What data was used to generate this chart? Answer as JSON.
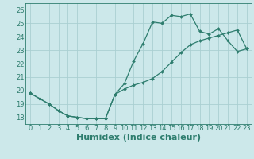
{
  "title": "",
  "xlabel": "Humidex (Indice chaleur)",
  "xlim": [
    -0.5,
    23.5
  ],
  "ylim": [
    17.5,
    26.5
  ],
  "xticks": [
    0,
    1,
    2,
    3,
    4,
    5,
    6,
    7,
    8,
    9,
    10,
    11,
    12,
    13,
    14,
    15,
    16,
    17,
    18,
    19,
    20,
    21,
    22,
    23
  ],
  "yticks": [
    18,
    19,
    20,
    21,
    22,
    23,
    24,
    25,
    26
  ],
  "line1_x": [
    0,
    1,
    2,
    3,
    4,
    5,
    6,
    7,
    8,
    9,
    10,
    11,
    12,
    13,
    14,
    15,
    16,
    17,
    18,
    19,
    20,
    21,
    22,
    23
  ],
  "line1_y": [
    19.8,
    19.4,
    19.0,
    18.5,
    18.1,
    18.0,
    17.9,
    17.9,
    17.9,
    19.7,
    20.5,
    22.2,
    23.5,
    25.1,
    25.0,
    25.6,
    25.5,
    25.7,
    24.4,
    24.2,
    24.6,
    23.7,
    22.9,
    23.1
  ],
  "line2_x": [
    0,
    1,
    2,
    3,
    4,
    5,
    6,
    7,
    8,
    9,
    10,
    11,
    12,
    13,
    14,
    15,
    16,
    17,
    18,
    19,
    20,
    21,
    22,
    23
  ],
  "line2_y": [
    19.8,
    19.4,
    19.0,
    18.5,
    18.1,
    18.0,
    17.9,
    17.9,
    17.9,
    19.7,
    20.1,
    20.4,
    20.6,
    20.9,
    21.4,
    22.1,
    22.8,
    23.4,
    23.7,
    23.9,
    24.1,
    24.3,
    24.5,
    23.1
  ],
  "line_color": "#2e7d6e",
  "bg_color": "#cce8ea",
  "grid_color": "#aacfd2",
  "tick_fontsize": 6,
  "xlabel_fontsize": 8,
  "marker_size": 2.0,
  "line_width": 0.9
}
